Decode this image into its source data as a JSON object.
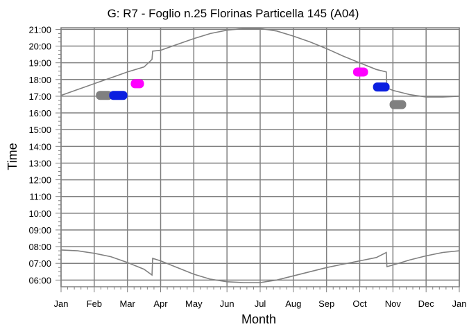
{
  "chart_data": {
    "type": "line",
    "title": "G: R7 - Foglio n.25 Florinas Particella 145 (A04)",
    "xlabel": "Month",
    "ylabel": "Time",
    "x_ticks": [
      "Jan",
      "Feb",
      "Mar",
      "Apr",
      "May",
      "Jun",
      "Jul",
      "Aug",
      "Sep",
      "Oct",
      "Nov",
      "Dec",
      "Jan"
    ],
    "xlim": [
      0,
      12
    ],
    "y_ticks": [
      "06:00",
      "07:00",
      "08:00",
      "09:00",
      "10:00",
      "11:00",
      "12:00",
      "13:00",
      "14:00",
      "15:00",
      "16:00",
      "17:00",
      "18:00",
      "19:00",
      "20:00",
      "21:00"
    ],
    "ylim": [
      5.6,
      21.1
    ],
    "grid": true,
    "series": [
      {
        "color": "#808080",
        "points": [
          [
            0,
            17.05
          ],
          [
            0.5,
            17.4
          ],
          [
            1,
            17.75
          ],
          [
            1.5,
            18.1
          ],
          [
            2,
            18.45
          ],
          [
            2.5,
            18.75
          ],
          [
            2.74,
            19.2
          ],
          [
            2.76,
            19.7
          ],
          [
            3,
            19.75
          ],
          [
            3.5,
            20.1
          ],
          [
            4,
            20.45
          ],
          [
            4.5,
            20.75
          ],
          [
            5,
            20.95
          ],
          [
            5.5,
            21.05
          ],
          [
            6,
            21.05
          ],
          [
            6.5,
            20.9
          ],
          [
            7,
            20.6
          ],
          [
            7.5,
            20.25
          ],
          [
            8,
            19.85
          ],
          [
            8.5,
            19.4
          ],
          [
            9,
            19.0
          ],
          [
            9.5,
            18.6
          ],
          [
            9.8,
            18.45
          ],
          [
            9.82,
            17.5
          ],
          [
            10,
            17.35
          ],
          [
            10.5,
            17.1
          ],
          [
            11,
            16.95
          ],
          [
            11.5,
            16.95
          ],
          [
            12,
            17.0
          ]
        ]
      },
      {
        "color": "#808080",
        "points": [
          [
            0,
            7.8
          ],
          [
            0.5,
            7.75
          ],
          [
            1,
            7.6
          ],
          [
            1.5,
            7.4
          ],
          [
            2,
            7.05
          ],
          [
            2.5,
            6.65
          ],
          [
            2.74,
            6.3
          ],
          [
            2.76,
            7.3
          ],
          [
            3,
            7.15
          ],
          [
            3.5,
            6.75
          ],
          [
            4,
            6.35
          ],
          [
            4.5,
            6.05
          ],
          [
            5,
            5.9
          ],
          [
            5.5,
            5.85
          ],
          [
            6,
            5.85
          ],
          [
            6.5,
            6.0
          ],
          [
            7,
            6.25
          ],
          [
            7.5,
            6.5
          ],
          [
            8,
            6.75
          ],
          [
            8.5,
            6.95
          ],
          [
            9,
            7.15
          ],
          [
            9.5,
            7.35
          ],
          [
            9.8,
            7.65
          ],
          [
            9.82,
            6.8
          ],
          [
            10,
            6.9
          ],
          [
            10.5,
            7.2
          ],
          [
            11,
            7.45
          ],
          [
            11.5,
            7.65
          ],
          [
            12,
            7.75
          ]
        ]
      }
    ],
    "blobs": [
      {
        "color": "#808080",
        "x": [
          1.05,
          1.55
        ],
        "y": 17.05
      },
      {
        "color": "#0b1fe0",
        "x": [
          1.45,
          2.0
        ],
        "y": 17.05
      },
      {
        "color": "#ff00ff",
        "x": [
          2.1,
          2.5
        ],
        "y": 17.75
      },
      {
        "color": "#ff00ff",
        "x": [
          8.8,
          9.25
        ],
        "y": 18.45
      },
      {
        "color": "#0b1fe0",
        "x": [
          9.4,
          9.9
        ],
        "y": 17.55
      },
      {
        "color": "#808080",
        "x": [
          9.9,
          10.4
        ],
        "y": 16.5
      }
    ]
  }
}
